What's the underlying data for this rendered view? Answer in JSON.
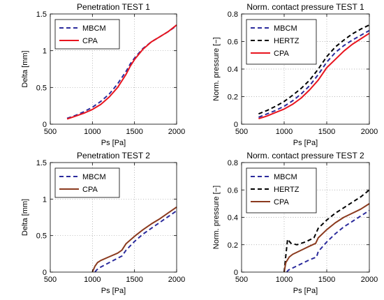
{
  "chart_data": [
    {
      "type": "line",
      "title": "Penetration TEST 1",
      "xlabel": "Ps [Pa]",
      "ylabel": "Delta [mm]",
      "xlim": [
        500,
        2000
      ],
      "ylim": [
        0,
        1.5
      ],
      "xticks": [
        "500",
        "1000",
        "1500",
        "2000"
      ],
      "yticks": [
        "0",
        "0.5",
        "1",
        "1.5"
      ],
      "grid": true,
      "legend": "top-left",
      "series": [
        {
          "name": "MBCM",
          "color": "#2b2b9c",
          "style": "dashed",
          "x": [
            700,
            800,
            900,
            1000,
            1100,
            1200,
            1300,
            1400,
            1450,
            1500,
            1600,
            1700,
            1800,
            1900,
            2000
          ],
          "y": [
            0.08,
            0.12,
            0.17,
            0.23,
            0.31,
            0.41,
            0.55,
            0.72,
            0.82,
            0.9,
            1.03,
            1.12,
            1.19,
            1.26,
            1.34
          ]
        },
        {
          "name": "CPA",
          "color": "#e8141e",
          "style": "solid",
          "x": [
            700,
            800,
            900,
            1000,
            1100,
            1200,
            1300,
            1400,
            1450,
            1500,
            1600,
            1700,
            1800,
            1900,
            2000
          ],
          "y": [
            0.07,
            0.11,
            0.15,
            0.2,
            0.27,
            0.37,
            0.5,
            0.68,
            0.79,
            0.88,
            1.02,
            1.12,
            1.19,
            1.26,
            1.35
          ]
        }
      ]
    },
    {
      "type": "line",
      "title": "Norm. contact pressure TEST 1",
      "xlabel": "Ps [Pa]",
      "ylabel": "Norm. pressure [−]",
      "xlim": [
        500,
        2000
      ],
      "ylim": [
        0,
        0.8
      ],
      "xticks": [
        "500",
        "1000",
        "1500",
        "2000"
      ],
      "yticks": [
        "0",
        "0.2",
        "0.4",
        "0.6",
        "0.8"
      ],
      "grid": true,
      "legend": "top-left",
      "series": [
        {
          "name": "MBCM",
          "color": "#2b2b9c",
          "style": "dashed",
          "x": [
            700,
            800,
            900,
            1000,
            1100,
            1200,
            1300,
            1400,
            1500,
            1600,
            1700,
            1800,
            1900,
            2000
          ],
          "y": [
            0.05,
            0.075,
            0.1,
            0.13,
            0.17,
            0.22,
            0.28,
            0.36,
            0.45,
            0.52,
            0.57,
            0.61,
            0.645,
            0.68
          ]
        },
        {
          "name": "HERTZ",
          "color": "#000000",
          "style": "dashed",
          "x": [
            700,
            800,
            900,
            1000,
            1100,
            1200,
            1300,
            1400,
            1500,
            1600,
            1700,
            1800,
            1900,
            2000
          ],
          "y": [
            0.075,
            0.1,
            0.13,
            0.165,
            0.21,
            0.26,
            0.32,
            0.4,
            0.49,
            0.56,
            0.61,
            0.655,
            0.69,
            0.72
          ]
        },
        {
          "name": "CPA",
          "color": "#e8141e",
          "style": "solid",
          "x": [
            700,
            800,
            900,
            1000,
            1100,
            1200,
            1300,
            1400,
            1500,
            1600,
            1700,
            1800,
            1900,
            2000
          ],
          "y": [
            0.04,
            0.06,
            0.085,
            0.11,
            0.145,
            0.19,
            0.25,
            0.32,
            0.41,
            0.47,
            0.53,
            0.58,
            0.62,
            0.66
          ]
        }
      ]
    },
    {
      "type": "line",
      "title": "Penetration TEST 2",
      "xlabel": "Ps [Pa]",
      "ylabel": "Delta [mm]",
      "xlim": [
        500,
        2000
      ],
      "ylim": [
        0,
        1.5
      ],
      "xticks": [
        "500",
        "1000",
        "1500",
        "2000"
      ],
      "yticks": [
        "0",
        "0.5",
        "1",
        "1.5"
      ],
      "grid": true,
      "legend": "top-left",
      "series": [
        {
          "name": "MBCM",
          "color": "#2b2b9c",
          "style": "dashed",
          "x": [
            1030,
            1050,
            1100,
            1200,
            1300,
            1350,
            1400,
            1500,
            1600,
            1700,
            1800,
            1900,
            2000
          ],
          "y": [
            0,
            0.03,
            0.07,
            0.13,
            0.19,
            0.22,
            0.3,
            0.42,
            0.52,
            0.6,
            0.68,
            0.76,
            0.84
          ]
        },
        {
          "name": "CPA",
          "color": "#8b3a1e",
          "style": "solid",
          "x": [
            1000,
            1030,
            1060,
            1100,
            1200,
            1300,
            1350,
            1400,
            1500,
            1600,
            1700,
            1800,
            1900,
            2000
          ],
          "y": [
            0,
            0.08,
            0.13,
            0.16,
            0.21,
            0.26,
            0.3,
            0.39,
            0.49,
            0.58,
            0.66,
            0.73,
            0.81,
            0.89
          ]
        }
      ]
    },
    {
      "type": "line",
      "title": "Norm. contact pressure TEST 2",
      "xlabel": "Ps [Pa]",
      "ylabel": "Norm. pressure [−]",
      "xlim": [
        500,
        2000
      ],
      "ylim": [
        0,
        0.8
      ],
      "xticks": [
        "500",
        "1000",
        "1500",
        "2000"
      ],
      "yticks": [
        "0",
        "0.2",
        "0.4",
        "0.6",
        "0.8"
      ],
      "grid": true,
      "legend": "top-left",
      "series": [
        {
          "name": "MBCM",
          "color": "#2b2b9c",
          "style": "dashed",
          "x": [
            1030,
            1050,
            1100,
            1200,
            1300,
            1380,
            1400,
            1500,
            1600,
            1700,
            1800,
            1900,
            2000
          ],
          "y": [
            0,
            0.015,
            0.03,
            0.06,
            0.09,
            0.11,
            0.15,
            0.22,
            0.28,
            0.33,
            0.37,
            0.41,
            0.45
          ]
        },
        {
          "name": "HERTZ",
          "color": "#000000",
          "style": "dashed",
          "x": [
            1000,
            1020,
            1040,
            1080,
            1150,
            1250,
            1350,
            1400,
            1500,
            1600,
            1700,
            1800,
            1900,
            2000
          ],
          "y": [
            0,
            0.12,
            0.24,
            0.21,
            0.2,
            0.22,
            0.25,
            0.32,
            0.38,
            0.43,
            0.47,
            0.51,
            0.55,
            0.6
          ]
        },
        {
          "name": "CPA",
          "color": "#8b3a1e",
          "style": "solid",
          "x": [
            1000,
            1020,
            1060,
            1100,
            1200,
            1300,
            1370,
            1400,
            1500,
            1600,
            1700,
            1800,
            1900,
            2000
          ],
          "y": [
            0,
            0.07,
            0.11,
            0.13,
            0.16,
            0.19,
            0.21,
            0.25,
            0.31,
            0.36,
            0.4,
            0.43,
            0.46,
            0.5
          ]
        }
      ]
    }
  ]
}
